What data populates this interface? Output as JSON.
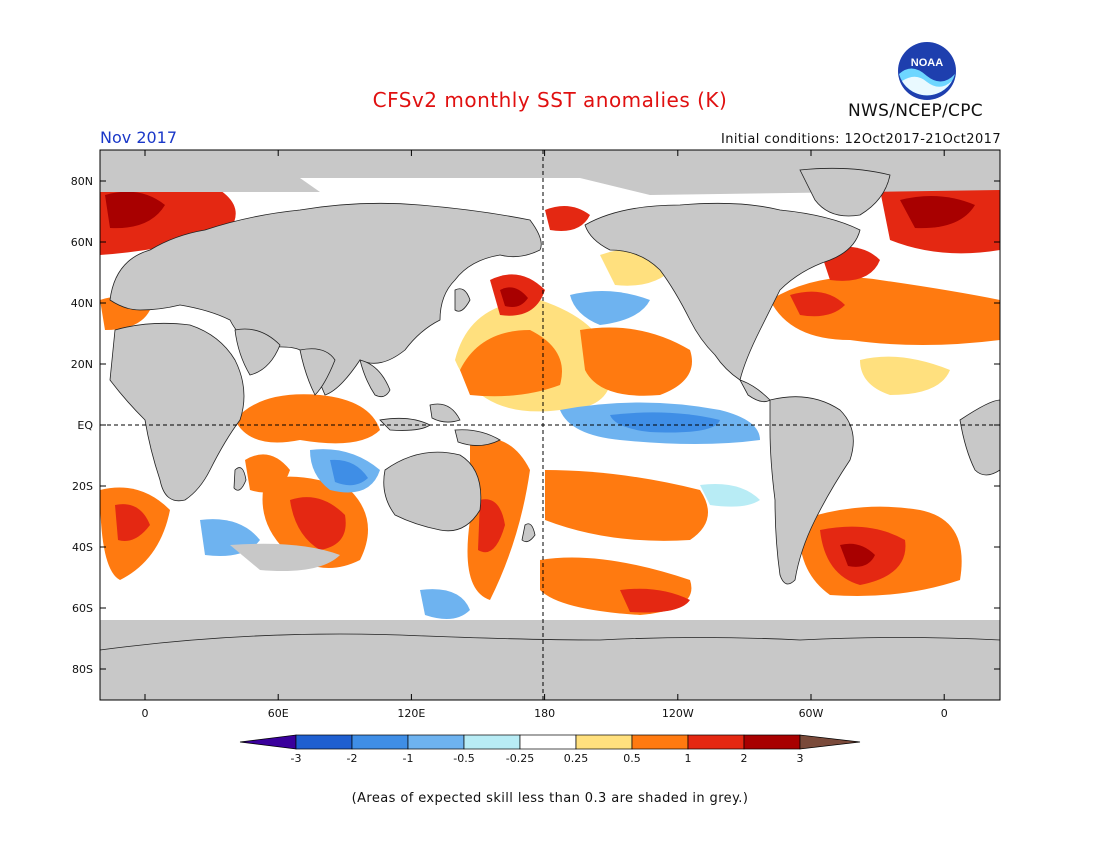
{
  "header": {
    "title": "CFSv2 monthly SST anomalies (K)",
    "month": "Nov 2017",
    "initial_conditions": "Initial conditions: 12Oct2017-21Oct2017",
    "agency": "NWS/NCEP/CPC",
    "logo_text": "NOAA"
  },
  "map": {
    "lat_labels": [
      "80N",
      "60N",
      "40N",
      "20N",
      "EQ",
      "20S",
      "40S",
      "60S",
      "80S"
    ],
    "lon_labels": [
      "0",
      "60E",
      "120E",
      "180",
      "120W",
      "60W",
      "0"
    ],
    "land_color": "#c8c8c8",
    "skill_mask_color": "#c8c8c8"
  },
  "colorbar": {
    "levels": [
      "-3",
      "-2",
      "-1",
      "-0.5",
      "-0.25",
      "0.25",
      "0.5",
      "1",
      "2",
      "3"
    ],
    "colors": [
      "#3a009c",
      "#1f5fd0",
      "#3f8ee6",
      "#6eb3f0",
      "#b8ecf5",
      "#ffffff",
      "#ffe07e",
      "#ff7a10",
      "#e42812",
      "#a80000",
      "#7a4a3a"
    ]
  },
  "footnote": "(Areas of expected skill less than 0.3 are shaded in grey.)"
}
